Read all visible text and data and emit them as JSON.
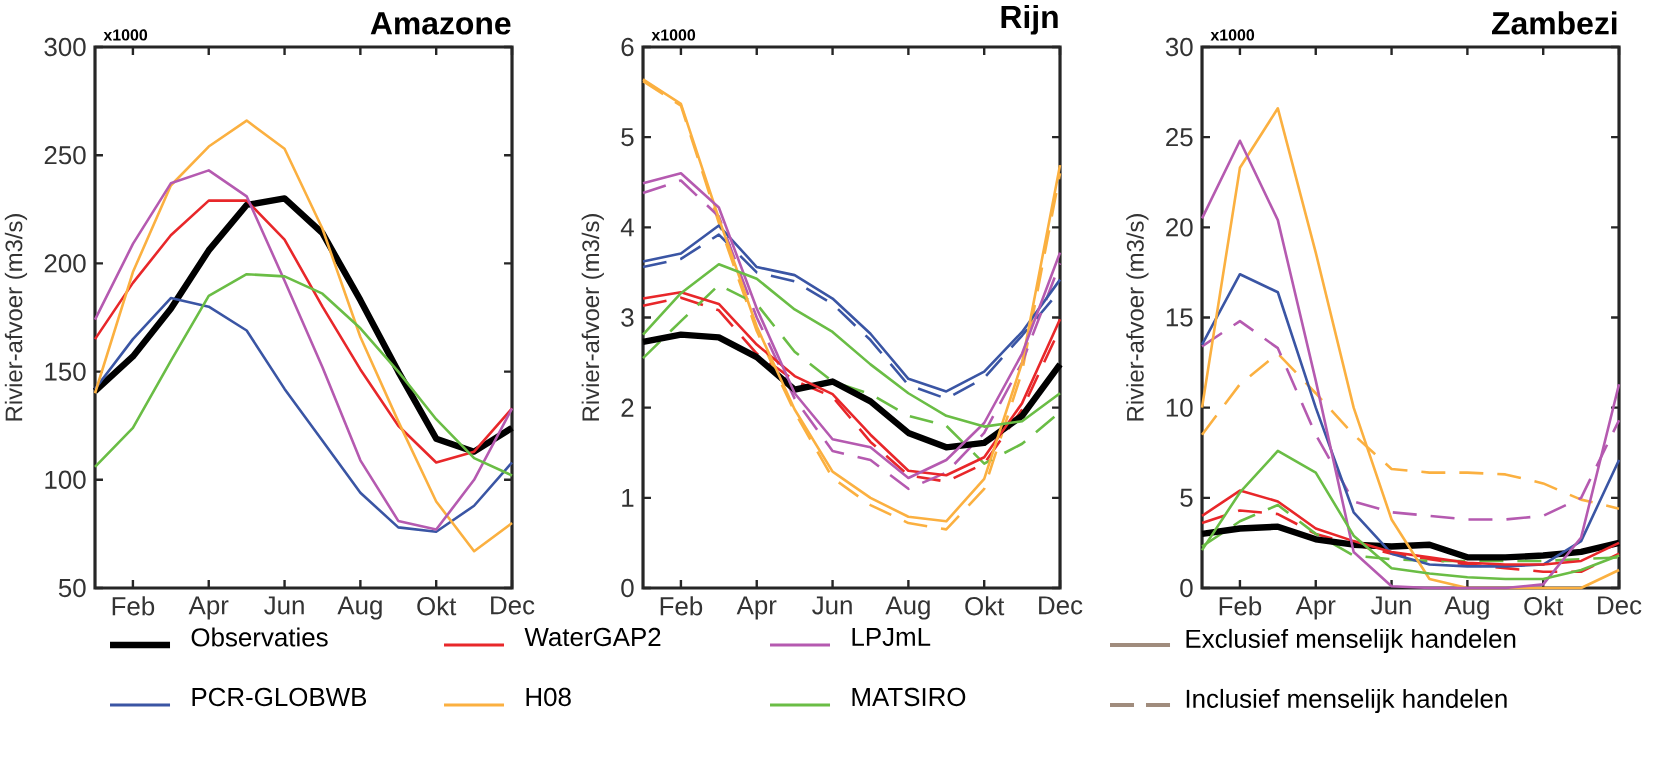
{
  "chart_data": [
    {
      "type": "line",
      "title": "Amazone",
      "ylabel": "Rivier-afvoer (m3/s)",
      "annotations": [
        "x1000",
        "Exclusief menselijk handelen",
        "Inclusief menselijk handelen"
      ],
      "categories": [
        null,
        "Feb",
        null,
        "Apr",
        null,
        "Jun",
        null,
        "Aug",
        null,
        "Okt",
        null,
        "Dec"
      ],
      "ylim": [
        50,
        300
      ],
      "yticks": [
        50,
        100,
        150,
        200,
        250,
        300
      ],
      "grid": false,
      "marker": "none",
      "legend": "bottom",
      "series": [
        {
          "name": "Observaties",
          "color": "#000000",
          "values": [
            141,
            157,
            179,
            206,
            227,
            230,
            214,
            183,
            150,
            119,
            113,
            124
          ]
        },
        {
          "name": "PCR-GLOBWB",
          "color": "#3a55a4",
          "values": [
            142,
            165,
            184,
            180,
            169,
            142,
            118,
            94,
            78,
            76,
            88,
            108
          ]
        },
        {
          "name": "WaterGAP2",
          "color": "#e8272a",
          "values": [
            165,
            191,
            213,
            229,
            229,
            211,
            180,
            151,
            125,
            108,
            113,
            133
          ]
        },
        {
          "name": "H08",
          "color": "#fbb040",
          "values": [
            140,
            196,
            236,
            254,
            266,
            253,
            216,
            166,
            127,
            90,
            67,
            80
          ]
        },
        {
          "name": "LPJmL",
          "color": "#b55ab0",
          "values": [
            174,
            209,
            237,
            243,
            231,
            192,
            152,
            109,
            81,
            77,
            100,
            133
          ]
        },
        {
          "name": "MATSIRO",
          "color": "#6abd45",
          "values": [
            106,
            124,
            155,
            185,
            195,
            194,
            186,
            170,
            150,
            128,
            110,
            102
          ]
        }
      ]
    },
    {
      "type": "line",
      "title": "Rijn",
      "ylabel": "Rivier-afvoer (m3/s)",
      "annotations": [
        "x1000"
      ],
      "categories": [
        null,
        "Feb",
        null,
        "Apr",
        null,
        "Jun",
        null,
        "Aug",
        null,
        "Okt",
        null,
        "Dec"
      ],
      "ylim": [
        0,
        6
      ],
      "yticks": [
        0,
        1,
        2,
        3,
        4,
        5,
        6
      ],
      "grid": false,
      "marker": "none",
      "series": [
        {
          "color": "#3a55a4",
          "line_style": "dashed",
          "values": [
            3.56,
            3.65,
            3.92,
            3.5,
            3.4,
            3.15,
            2.75,
            2.25,
            2.1,
            2.33,
            2.8,
            3.3
          ]
        },
        {
          "color": "#e8272a",
          "line_style": "dashed",
          "values": [
            3.13,
            3.22,
            3.08,
            2.6,
            2.3,
            2.12,
            1.62,
            1.25,
            1.18,
            1.38,
            1.98,
            2.88
          ]
        },
        {
          "color": "#fbb040",
          "line_style": "dashed",
          "values": [
            5.62,
            5.35,
            4.05,
            2.85,
            1.95,
            1.22,
            0.92,
            0.72,
            0.65,
            1.1,
            2.4,
            4.6
          ]
        },
        {
          "color": "#b55ab0",
          "line_style": "dashed",
          "values": [
            4.38,
            4.52,
            4.12,
            3.0,
            2.1,
            1.52,
            1.42,
            1.1,
            1.28,
            1.72,
            2.5,
            3.6
          ]
        },
        {
          "color": "#6abd45",
          "line_style": "dashed",
          "values": [
            2.55,
            2.96,
            3.36,
            3.15,
            2.62,
            2.29,
            2.15,
            1.91,
            1.8,
            1.38,
            1.6,
            1.95
          ]
        },
        {
          "color": "#000000",
          "values": [
            2.73,
            2.81,
            2.78,
            2.56,
            2.2,
            2.29,
            2.07,
            1.72,
            1.56,
            1.61,
            1.91,
            2.48
          ]
        },
        {
          "color": "#3a55a4",
          "values": [
            3.62,
            3.71,
            4.02,
            3.56,
            3.47,
            3.21,
            2.82,
            2.32,
            2.18,
            2.4,
            2.84,
            3.42
          ]
        },
        {
          "color": "#e8272a",
          "values": [
            3.21,
            3.28,
            3.15,
            2.7,
            2.35,
            2.15,
            1.7,
            1.3,
            1.25,
            1.45,
            2.05,
            2.98
          ]
        },
        {
          "color": "#fbb040",
          "values": [
            5.64,
            5.37,
            4.1,
            2.9,
            1.98,
            1.29,
            1.0,
            0.79,
            0.74,
            1.21,
            2.5,
            4.69
          ]
        },
        {
          "color": "#b55ab0",
          "values": [
            4.49,
            4.6,
            4.22,
            3.1,
            2.16,
            1.65,
            1.56,
            1.22,
            1.42,
            1.83,
            2.6,
            3.72
          ]
        },
        {
          "color": "#6abd45",
          "values": [
            2.81,
            3.27,
            3.59,
            3.43,
            3.09,
            2.84,
            2.48,
            2.16,
            1.91,
            1.79,
            1.85,
            2.16
          ]
        }
      ]
    },
    {
      "type": "line",
      "title": "Zambezi",
      "ylabel": "Rivier-afvoer (m3/s)",
      "annotations": [
        "x1000"
      ],
      "categories": [
        null,
        "Feb",
        null,
        "Apr",
        null,
        "Jun",
        null,
        "Aug",
        null,
        "Okt",
        null,
        "Dec"
      ],
      "ylim": [
        0,
        30
      ],
      "yticks": [
        0,
        5,
        10,
        15,
        20,
        25,
        30
      ],
      "grid": false,
      "marker": "none",
      "series": [
        {
          "color": "#e8272a",
          "line_style": "dashed",
          "values": [
            3.6,
            4.3,
            4.1,
            3.0,
            2.4,
            1.9,
            1.6,
            1.3,
            1.1,
            0.9,
            0.9,
            1.9
          ]
        },
        {
          "color": "#fbb040",
          "line_style": "dashed",
          "values": [
            8.5,
            11.3,
            13.0,
            10.8,
            8.5,
            6.6,
            6.4,
            6.4,
            6.3,
            5.8,
            4.9,
            4.4
          ]
        },
        {
          "color": "#b55ab0",
          "line_style": "dashed",
          "values": [
            13.4,
            14.8,
            13.3,
            8.5,
            4.8,
            4.2,
            4.0,
            3.8,
            3.8,
            4.0,
            5.0,
            9.3
          ]
        },
        {
          "color": "#6abd45",
          "line_style": "dashed",
          "values": [
            2.3,
            3.7,
            4.6,
            3.0,
            1.8,
            1.6,
            1.5,
            1.5,
            1.5,
            1.5,
            1.6,
            1.7
          ]
        },
        {
          "color": "#000000",
          "values": [
            3.0,
            3.3,
            3.4,
            2.7,
            2.4,
            2.3,
            2.4,
            1.7,
            1.7,
            1.8,
            2.0,
            2.5
          ]
        },
        {
          "color": "#3a55a4",
          "values": [
            13.5,
            17.4,
            16.4,
            10.0,
            4.2,
            1.9,
            1.3,
            1.2,
            1.2,
            1.3,
            2.6,
            7.1
          ]
        },
        {
          "color": "#e8272a",
          "values": [
            4.0,
            5.4,
            4.8,
            3.3,
            2.6,
            2.0,
            1.7,
            1.4,
            1.3,
            1.3,
            1.5,
            2.5
          ]
        },
        {
          "color": "#fbb040",
          "values": [
            10.0,
            23.3,
            26.6,
            18.6,
            10.0,
            3.8,
            0.5,
            0,
            0,
            0,
            0,
            1.0
          ]
        },
        {
          "color": "#b55ab0",
          "values": [
            20.5,
            24.8,
            20.4,
            11.5,
            2.0,
            0.1,
            0,
            0,
            0,
            0.2,
            2.8,
            11.3
          ]
        },
        {
          "color": "#6abd45",
          "values": [
            2.1,
            5.3,
            7.6,
            6.4,
            2.9,
            1.1,
            0.8,
            0.6,
            0.5,
            0.5,
            1.0,
            1.8
          ]
        }
      ]
    }
  ]
}
